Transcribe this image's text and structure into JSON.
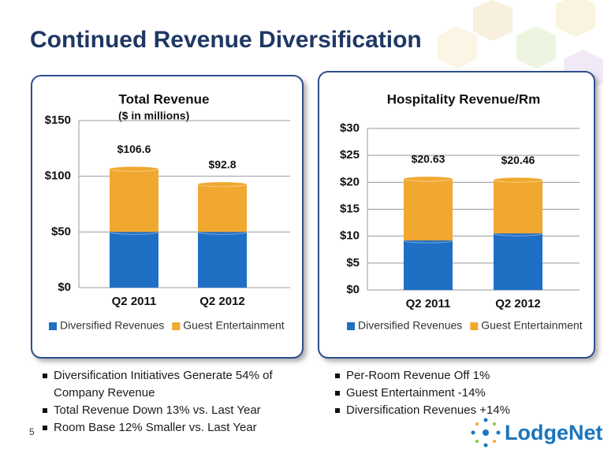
{
  "slide_title": "Continued Revenue Diversification",
  "page_number": "5",
  "logo": "LodgeNet",
  "bullets_left": [
    "Diversification Initiatives Generate 54% of Company Revenue",
    "Total Revenue Down 13% vs. Last Year",
    "Room Base 12% Smaller vs. Last Year"
  ],
  "bullets_right": [
    "Per-Room Revenue Off 1%",
    "Guest Entertainment -14%",
    "Diversification Revenues +14%"
  ],
  "chart_data": [
    {
      "type": "bar",
      "stacked": true,
      "title": "Total Revenue",
      "subtitle": "($ in millions)",
      "categories": [
        "Q2 2011",
        "Q2 2012"
      ],
      "series": [
        {
          "name": "Diversified Revenues",
          "color": "#1F6FC5",
          "values": [
            50,
            50
          ]
        },
        {
          "name": "Guest Entertainment",
          "color": "#F0A830",
          "values": [
            56.6,
            42.8
          ]
        }
      ],
      "totals": [
        106.6,
        92.8
      ],
      "total_labels": [
        "$106.6",
        "$92.8"
      ],
      "ylim": [
        0,
        150
      ],
      "yticks": [
        {
          "value": 0,
          "label": "$0"
        },
        {
          "value": 50,
          "label": "$50"
        },
        {
          "value": 100,
          "label": "$100"
        },
        {
          "value": 150,
          "label": "$150"
        }
      ],
      "grid": true,
      "legend": "bottom"
    },
    {
      "type": "bar",
      "stacked": true,
      "title": "Hospitality Revenue/Rm",
      "categories": [
        "Q2 2011",
        "Q2 2012"
      ],
      "series": [
        {
          "name": "Diversified Revenues",
          "color": "#1F6FC5",
          "values": [
            9.2,
            10.5
          ]
        },
        {
          "name": "Guest Entertainment",
          "color": "#F0A830",
          "values": [
            11.43,
            9.96
          ]
        }
      ],
      "totals": [
        20.63,
        20.46
      ],
      "total_labels": [
        "$20.63",
        "$20.46"
      ],
      "ylim": [
        0,
        30
      ],
      "yticks": [
        {
          "value": 0,
          "label": "$0"
        },
        {
          "value": 5,
          "label": "$5"
        },
        {
          "value": 10,
          "label": "$10"
        },
        {
          "value": 15,
          "label": "$15"
        },
        {
          "value": 20,
          "label": "$20"
        },
        {
          "value": 25,
          "label": "$25"
        },
        {
          "value": 30,
          "label": "$30"
        }
      ],
      "grid": true,
      "legend": "bottom"
    }
  ]
}
